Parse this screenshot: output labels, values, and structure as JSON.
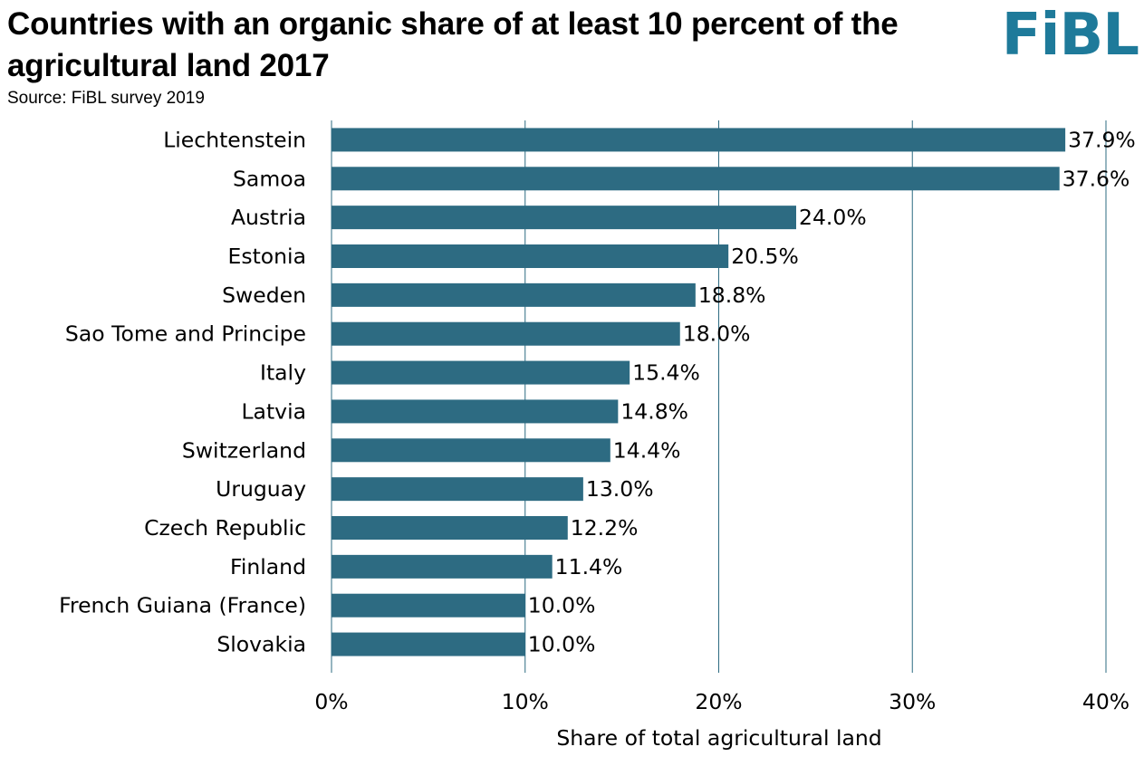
{
  "header": {
    "title": "Countries with an organic share of at least 10 percent of the agricultural land 2017",
    "source": "Source: FiBL survey 2019",
    "logo_text": "FiBL"
  },
  "colors": {
    "bar": "#2d6b82",
    "logo": "#1e7a9a",
    "grid": "#2d6b82"
  },
  "chart_data": {
    "type": "bar",
    "orientation": "horizontal",
    "categories": [
      "Liechtenstein",
      "Samoa",
      "Austria",
      "Estonia",
      "Sweden",
      "Sao Tome and Principe",
      "Italy",
      "Latvia",
      "Switzerland",
      "Uruguay",
      "Czech Republic",
      "Finland",
      "French Guiana (France)",
      "Slovakia"
    ],
    "values": [
      37.9,
      37.6,
      24.0,
      20.5,
      18.8,
      18.0,
      15.4,
      14.8,
      14.4,
      13.0,
      12.2,
      11.4,
      10.0,
      10.0
    ],
    "value_labels": [
      "37.9%",
      "37.6%",
      "24.0%",
      "20.5%",
      "18.8%",
      "18.0%",
      "15.4%",
      "14.8%",
      "14.4%",
      "13.0%",
      "12.2%",
      "11.4%",
      "10.0%",
      "10.0%"
    ],
    "xlabel": "Share of total agricultural land",
    "ylabel": "",
    "xlim": [
      0,
      40
    ],
    "xticks": [
      0,
      10,
      20,
      30,
      40
    ],
    "xtick_labels": [
      "0%",
      "10%",
      "20%",
      "30%",
      "40%"
    ],
    "grid": true,
    "legend": "none"
  }
}
